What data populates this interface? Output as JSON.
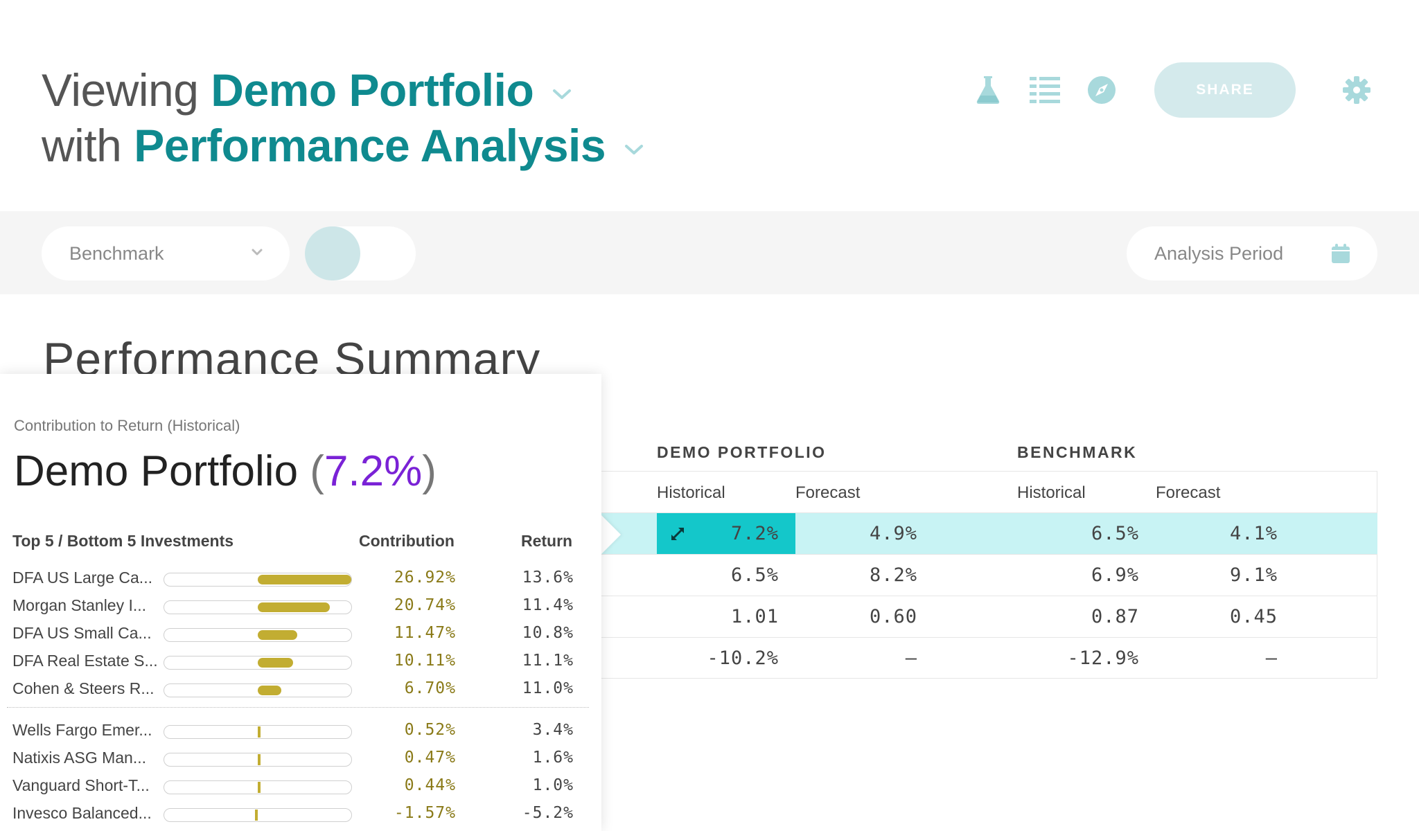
{
  "header": {
    "line1_prefix": "Viewing",
    "portfolio_name": "Demo Portfolio",
    "line2_prefix": "with",
    "analysis_name": "Performance Analysis",
    "share_label": "SHARE",
    "icons": [
      "flask-icon",
      "list-icon",
      "compass-icon",
      "gear-icon"
    ],
    "accent_color": "#0f8a8f"
  },
  "toolbar": {
    "benchmark_label": "Benchmark",
    "period_label": "Analysis Period"
  },
  "section": {
    "title": "Performance Summary"
  },
  "table": {
    "groups": [
      "DEMO PORTFOLIO",
      "BENCHMARK"
    ],
    "columns": [
      "Historical",
      "Forecast",
      "Historical",
      "Forecast"
    ],
    "rows": [
      [
        "7.2%",
        "4.9%",
        "6.5%",
        "4.1%"
      ],
      [
        "6.5%",
        "8.2%",
        "6.9%",
        "9.1%"
      ],
      [
        "1.01",
        "0.60",
        "0.87",
        "0.45"
      ],
      [
        "-10.2%",
        "–",
        "-12.9%",
        "–"
      ]
    ]
  },
  "popover": {
    "subtitle": "Contribution to Return (Historical)",
    "title_name": "Demo Portfolio",
    "title_open": "(",
    "title_pct": "7.2%",
    "title_close": ")",
    "col_investments": "Top 5 / Bottom 5 Investments",
    "col_contribution": "Contribution",
    "col_return": "Return",
    "bar_color": "#c2ad32",
    "pct_color": "#7a22d6",
    "top": [
      {
        "name": "DFA US Large Ca...",
        "contribution": "26.92%",
        "return": "13.6%",
        "value": 26.92
      },
      {
        "name": "Morgan Stanley I...",
        "contribution": "20.74%",
        "return": "11.4%",
        "value": 20.74
      },
      {
        "name": "DFA US Small Ca...",
        "contribution": "11.47%",
        "return": "10.8%",
        "value": 11.47
      },
      {
        "name": "DFA Real Estate S...",
        "contribution": "10.11%",
        "return": "11.1%",
        "value": 10.11
      },
      {
        "name": "Cohen & Steers R...",
        "contribution": "6.70%",
        "return": "11.0%",
        "value": 6.7
      }
    ],
    "bottom": [
      {
        "name": "Wells Fargo Emer...",
        "contribution": "0.52%",
        "return": "3.4%",
        "value": 0.52
      },
      {
        "name": "Natixis ASG Man...",
        "contribution": "0.47%",
        "return": "1.6%",
        "value": 0.47
      },
      {
        "name": "Vanguard Short-T...",
        "contribution": "0.44%",
        "return": "1.0%",
        "value": 0.44
      },
      {
        "name": "Invesco Balanced...",
        "contribution": "-1.57%",
        "return": "-5.2%",
        "value": -1.57
      }
    ]
  }
}
